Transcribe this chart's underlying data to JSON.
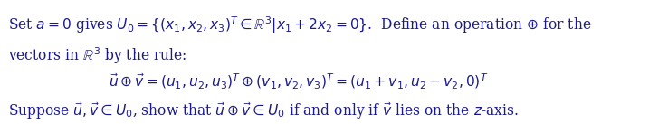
{
  "figsize": [
    7.38,
    1.37
  ],
  "dpi": 100,
  "background_color": "#ffffff",
  "text_color": "#1a1a8c",
  "font_size": 11.2,
  "line1": "Set $a = 0$ gives $U_0 = \\{(x_1, x_2, x_3)^T \\in \\mathbb{R}^3 | x_1 + 2x_2 = 0\\}$.  Define an operation $\\oplus$ for the",
  "line2": "vectors in $\\mathbb{R}^3$ by the rule:",
  "line3": "$\\vec{u} \\oplus \\vec{v} = (u_1, u_2, u_3)^T \\oplus (v_1, v_2, v_3)^T = (u_1 + v_1, u_2 - v_2, 0)^T$",
  "line4": "Suppose $\\vec{u}, \\vec{v} \\in U_0$, show that $\\vec{u} \\oplus \\vec{v} \\in U_0$ if and only if $\\vec{v}$ lies on the $z$-axis."
}
